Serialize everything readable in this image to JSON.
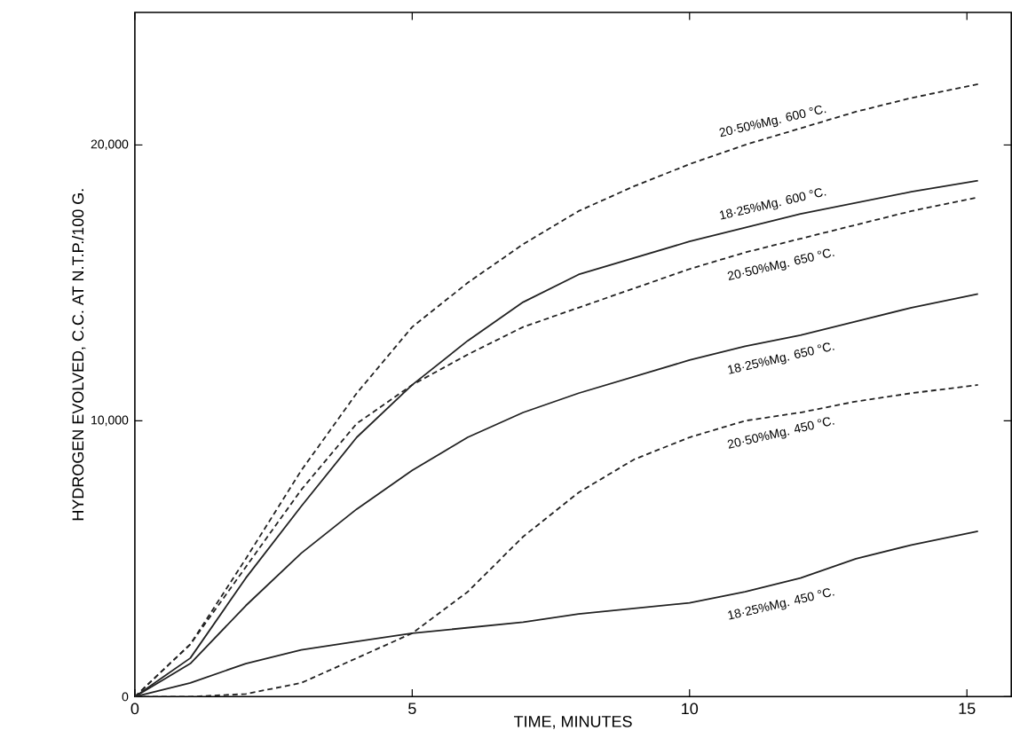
{
  "chart_data": {
    "type": "line",
    "xlabel": "TIME, MINUTES",
    "ylabel": "HYDROGEN EVOLVED, C.C. AT N.T.P./100 G.",
    "x": [
      0,
      1,
      2,
      3,
      4,
      5,
      6,
      7,
      8,
      9,
      10,
      11,
      12,
      13,
      14,
      15.2
    ],
    "xlim": [
      0,
      15.8
    ],
    "xticks": [
      0,
      5,
      10,
      15
    ],
    "ylim": [
      0,
      24800
    ],
    "yticks": [
      0,
      {
        "value": 10000,
        "label": "10,000"
      },
      {
        "value": 20000,
        "label": "20,000"
      }
    ],
    "grid": false,
    "legend": false,
    "marker": "none",
    "series": [
      {
        "name": "20·50%Mg. 600 °C.",
        "color": "#222222",
        "line_style": "dashed",
        "values": [
          0,
          1900,
          5000,
          8200,
          11000,
          13400,
          15000,
          16400,
          17600,
          18500,
          19300,
          20000,
          20600,
          21200,
          21700,
          22200
        ]
      },
      {
        "name": "18·25%Mg. 600 °C.",
        "color": "#222222",
        "line_style": "solid",
        "values": [
          0,
          1400,
          4300,
          6900,
          9400,
          11300,
          12900,
          14300,
          15300,
          15900,
          16500,
          17000,
          17500,
          17900,
          18300,
          18700
        ]
      },
      {
        "name": "20·50%Mg. 650 °C.",
        "color": "#222222",
        "line_style": "dashed",
        "values": [
          0,
          1900,
          4700,
          7500,
          9900,
          11300,
          12400,
          13400,
          14100,
          14800,
          15500,
          16100,
          16600,
          17100,
          17600,
          18100
        ]
      },
      {
        "name": "18·25%Mg. 650 °C.",
        "color": "#222222",
        "line_style": "solid",
        "values": [
          0,
          1200,
          3300,
          5200,
          6800,
          8200,
          9400,
          10300,
          11000,
          11600,
          12200,
          12700,
          13100,
          13600,
          14100,
          14600
        ]
      },
      {
        "name": "20·50%Mg. 450 °C.",
        "color": "#222222",
        "line_style": "dashed",
        "values": [
          0,
          0,
          100,
          500,
          1400,
          2300,
          3800,
          5800,
          7400,
          8600,
          9400,
          10000,
          10300,
          10700,
          11000,
          11300
        ]
      },
      {
        "name": "18·25%Mg. 450 °C.",
        "color": "#222222",
        "line_style": "solid",
        "values": [
          0,
          500,
          1200,
          1700,
          2000,
          2300,
          2500,
          2700,
          3000,
          3200,
          3400,
          3800,
          4300,
          5000,
          5500,
          6000
        ]
      }
    ]
  }
}
